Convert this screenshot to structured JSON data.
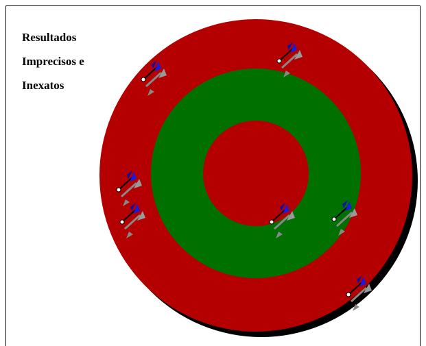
{
  "caption": {
    "lines": [
      "Resultados",
      "Imprecisos e",
      "Inexatos"
    ]
  }
}
